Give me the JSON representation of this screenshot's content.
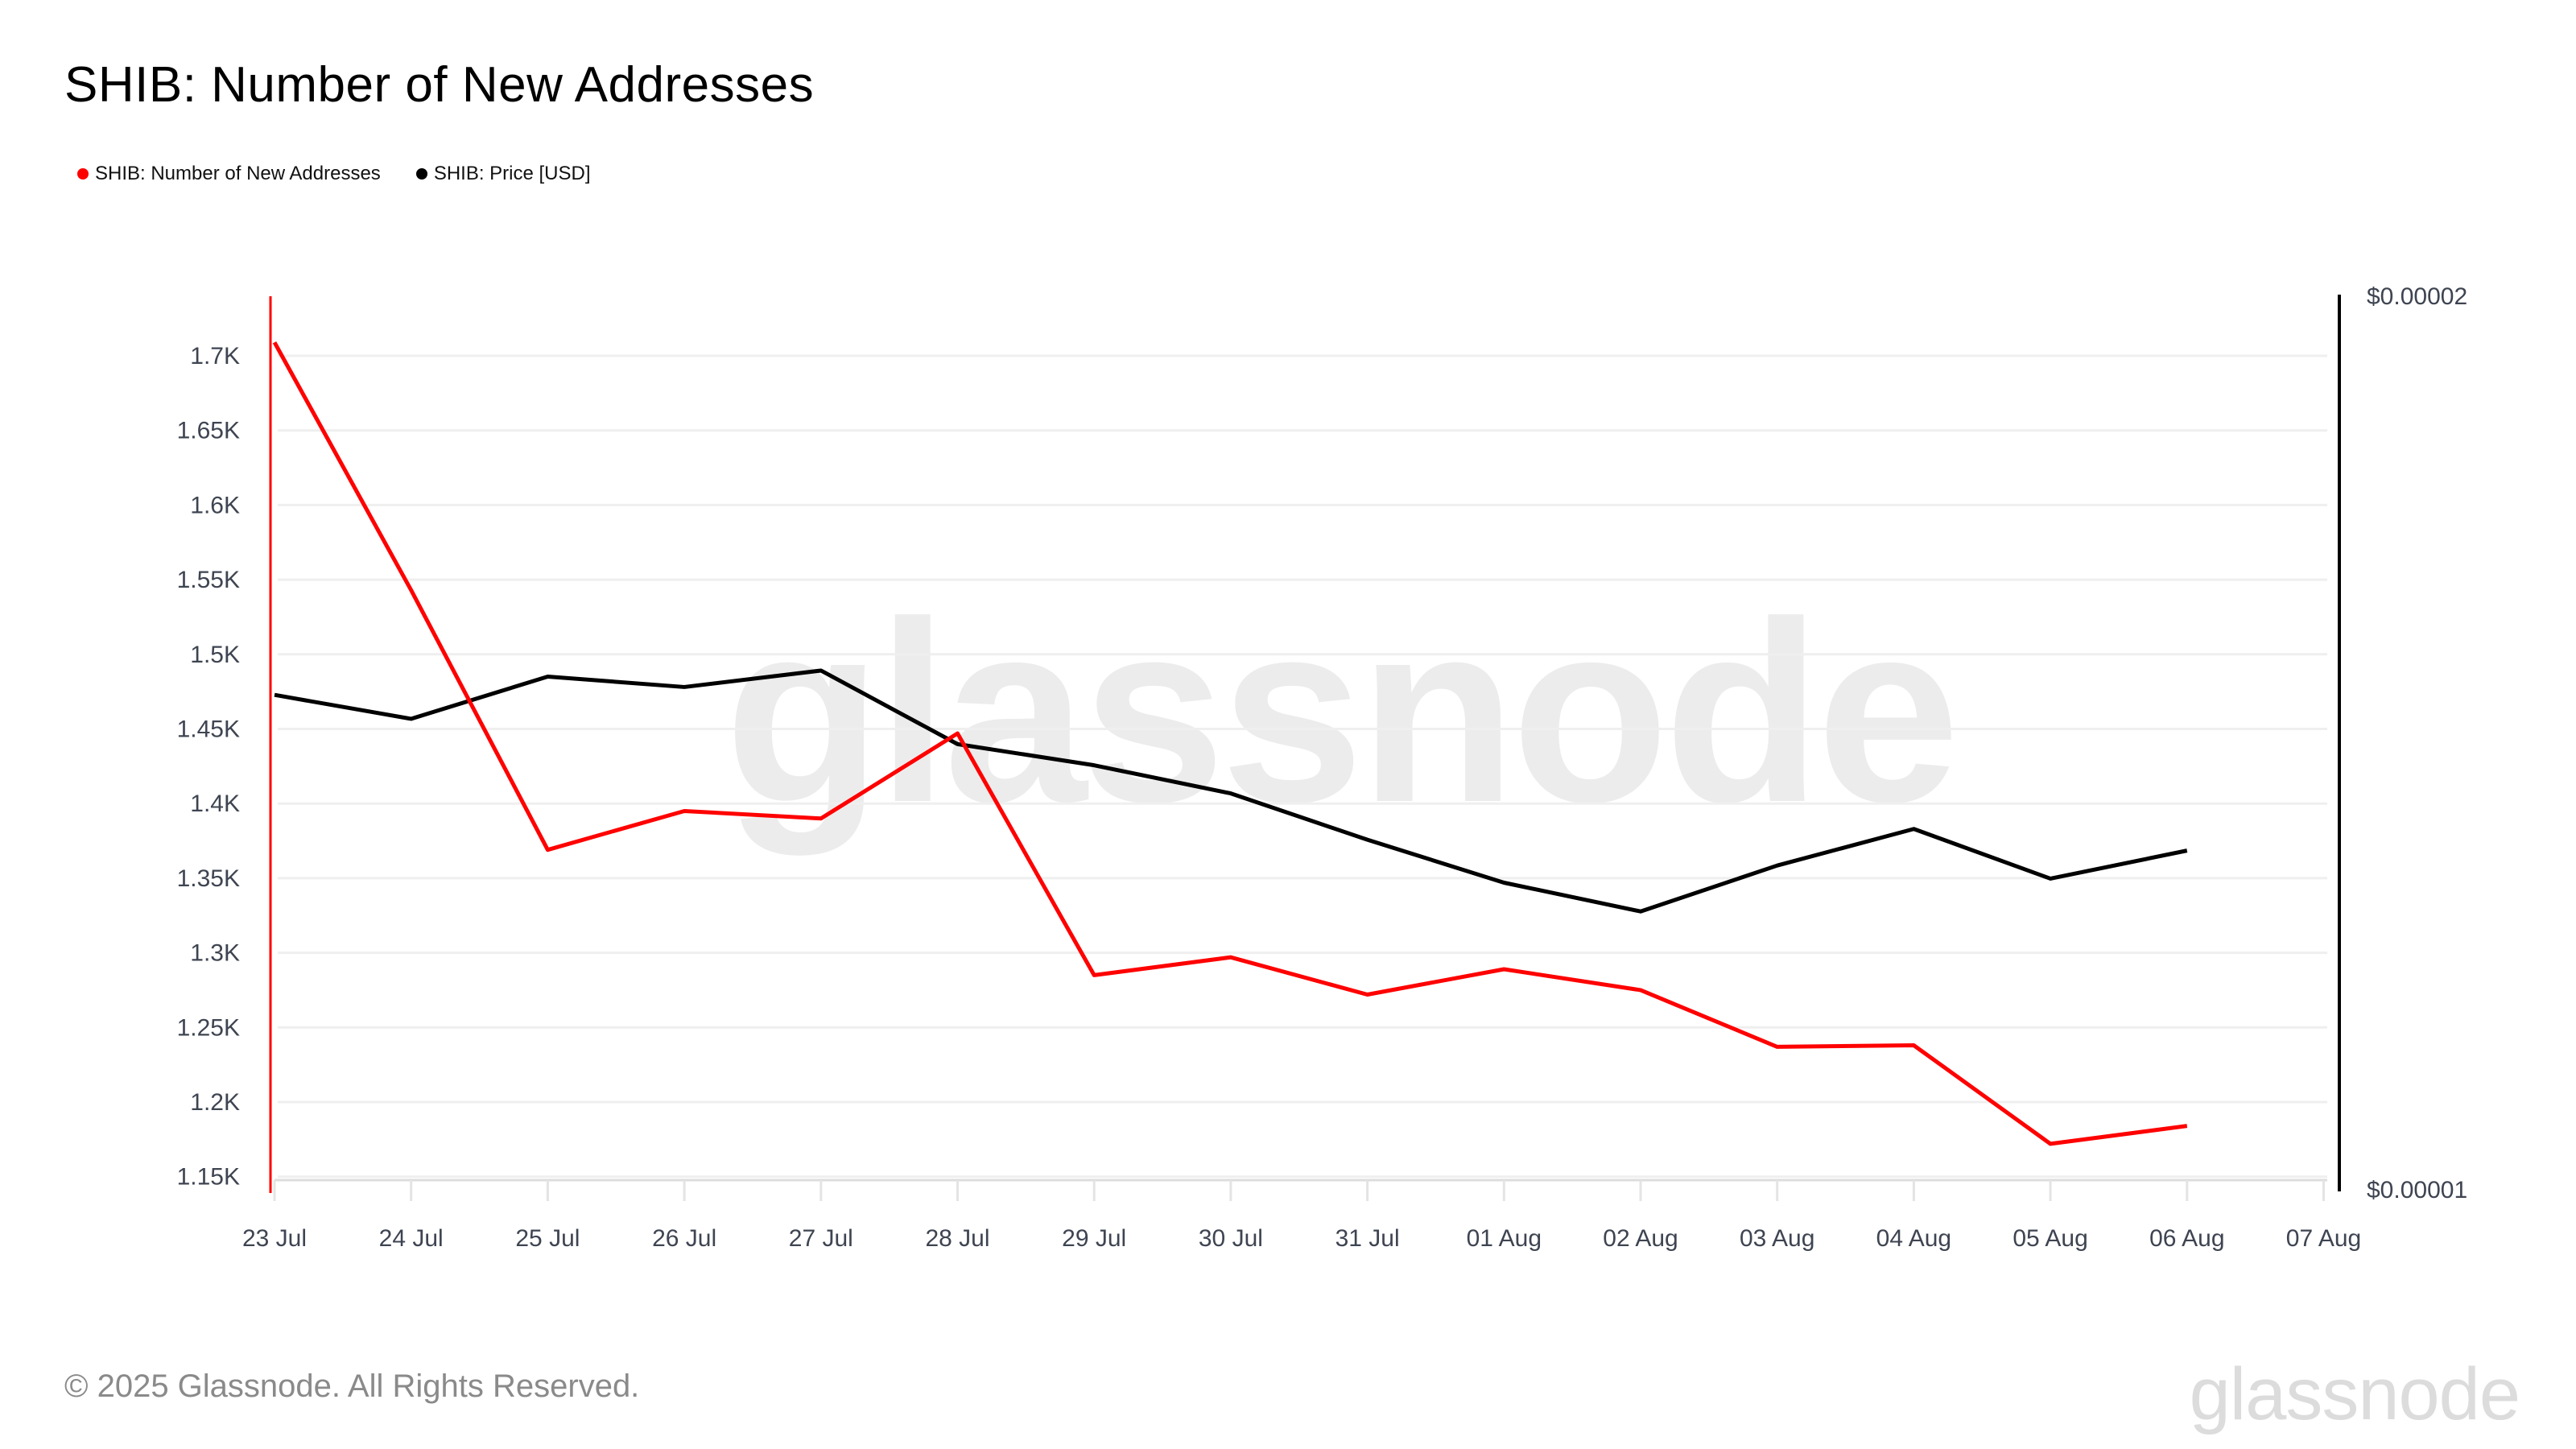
{
  "header": {
    "title": "SHIB: Number of New Addresses"
  },
  "legend": [
    {
      "label": "SHIB: Number of New Addresses",
      "color": "#ff0000"
    },
    {
      "label": "SHIB: Price [USD]",
      "color": "#000000"
    }
  ],
  "footer": {
    "copyright": "© 2025 Glassnode. All Rights Reserved.",
    "logo": "glassnode"
  },
  "watermark": "glassnode",
  "chart_data": {
    "type": "line",
    "title": "SHIB: Number of New Addresses",
    "xlabel": "",
    "ylabel": "",
    "x": [
      "23 Jul",
      "24 Jul",
      "25 Jul",
      "26 Jul",
      "27 Jul",
      "28 Jul",
      "29 Jul",
      "30 Jul",
      "31 Jul",
      "01 Aug",
      "02 Aug",
      "03 Aug",
      "04 Aug",
      "05 Aug",
      "06 Aug"
    ],
    "x_tick_labels": [
      "23 Jul",
      "24 Jul",
      "25 Jul",
      "26 Jul",
      "27 Jul",
      "28 Jul",
      "29 Jul",
      "30 Jul",
      "31 Jul",
      "01 Aug",
      "02 Aug",
      "03 Aug",
      "04 Aug",
      "05 Aug",
      "06 Aug",
      "07 Aug"
    ],
    "series": [
      {
        "name": "SHIB: Number of New Addresses",
        "axis": "left",
        "color": "#ff0000",
        "values": [
          1709,
          1543,
          1369,
          1395,
          1390,
          1447,
          1285,
          1297,
          1272,
          1289,
          1275,
          1237,
          1238,
          1172,
          1184
        ]
      },
      {
        "name": "SHIB: Price [USD]",
        "axis": "right",
        "color": "#000000",
        "values": [
          1.468e-05,
          1.441e-05,
          1.489e-05,
          1.477e-05,
          1.496e-05,
          1.413e-05,
          1.39e-05,
          1.36e-05,
          1.312e-05,
          1.269e-05,
          1.241e-05,
          1.286e-05,
          1.323e-05,
          1.273e-05,
          1.301e-05
        ]
      }
    ],
    "y_left": {
      "ticks": [
        1150,
        1200,
        1250,
        1300,
        1350,
        1400,
        1450,
        1500,
        1550,
        1600,
        1650,
        1700
      ],
      "tick_labels": [
        "1.15K",
        "1.2K",
        "1.25K",
        "1.3K",
        "1.35K",
        "1.4K",
        "1.45K",
        "1.5K",
        "1.55K",
        "1.6K",
        "1.65K",
        "1.7K"
      ],
      "ylim": [
        1140,
        1740
      ]
    },
    "y_right": {
      "tick_labels": [
        "$0.00001",
        "$0.00002"
      ],
      "ylim": [
        1e-05,
        2e-05
      ],
      "scale": "log"
    },
    "grid": true,
    "legend_position": "top-left"
  }
}
